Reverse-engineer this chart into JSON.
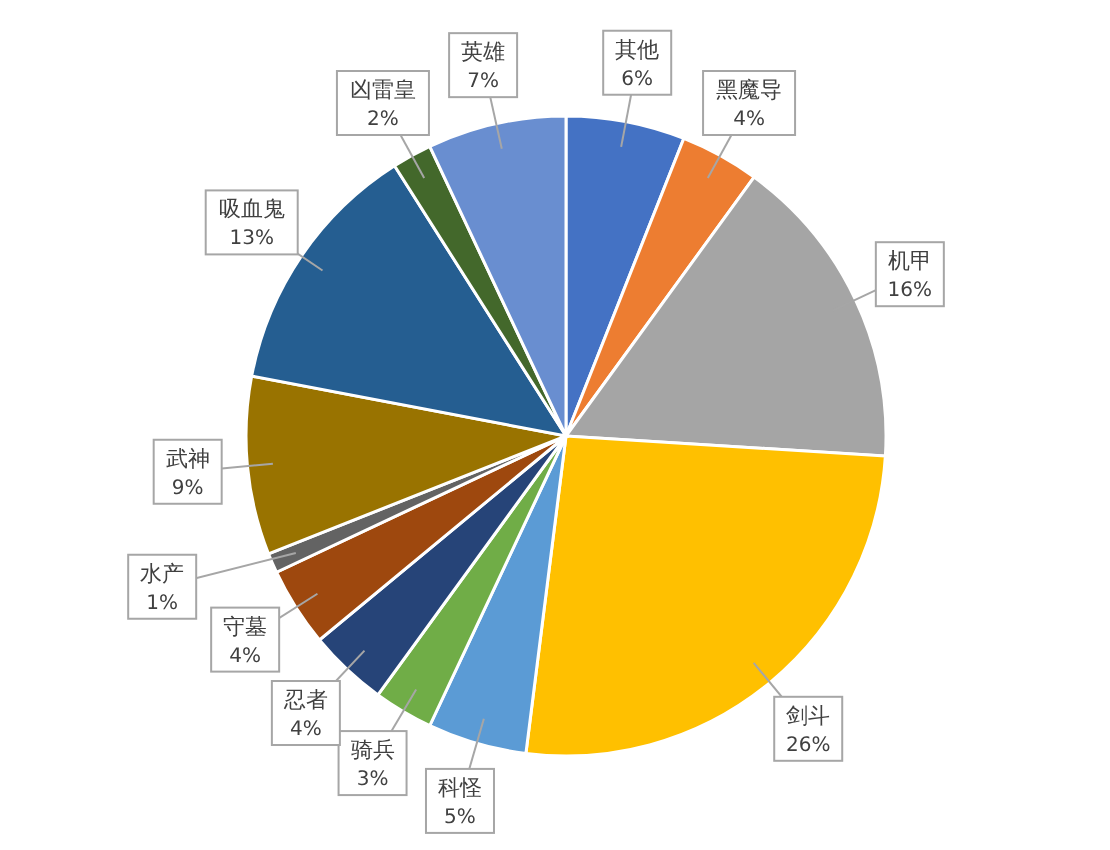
{
  "chart_data": {
    "type": "pie",
    "categories": [
      "其他",
      "黑魔导",
      "机甲",
      "剑斗",
      "科怪",
      "骑兵",
      "忍者",
      "守墓",
      "水产",
      "武神",
      "吸血鬼",
      "凶雷皇",
      "英雄"
    ],
    "values": [
      6,
      4,
      16,
      26,
      5,
      3,
      4,
      4,
      1,
      9,
      13,
      2,
      7
    ],
    "value_labels": [
      "6%",
      "4%",
      "16%",
      "26%",
      "5%",
      "3%",
      "4%",
      "4%",
      "1%",
      "9%",
      "13%",
      "2%",
      "7%"
    ],
    "colors": [
      "#4472c4",
      "#ed7d31",
      "#a5a5a5",
      "#ffc000",
      "#5b9bd5",
      "#70ad47",
      "#264478",
      "#9e480e",
      "#636363",
      "#997300",
      "#255e91",
      "#43682b",
      "#698ed0"
    ],
    "legend": false
  }
}
